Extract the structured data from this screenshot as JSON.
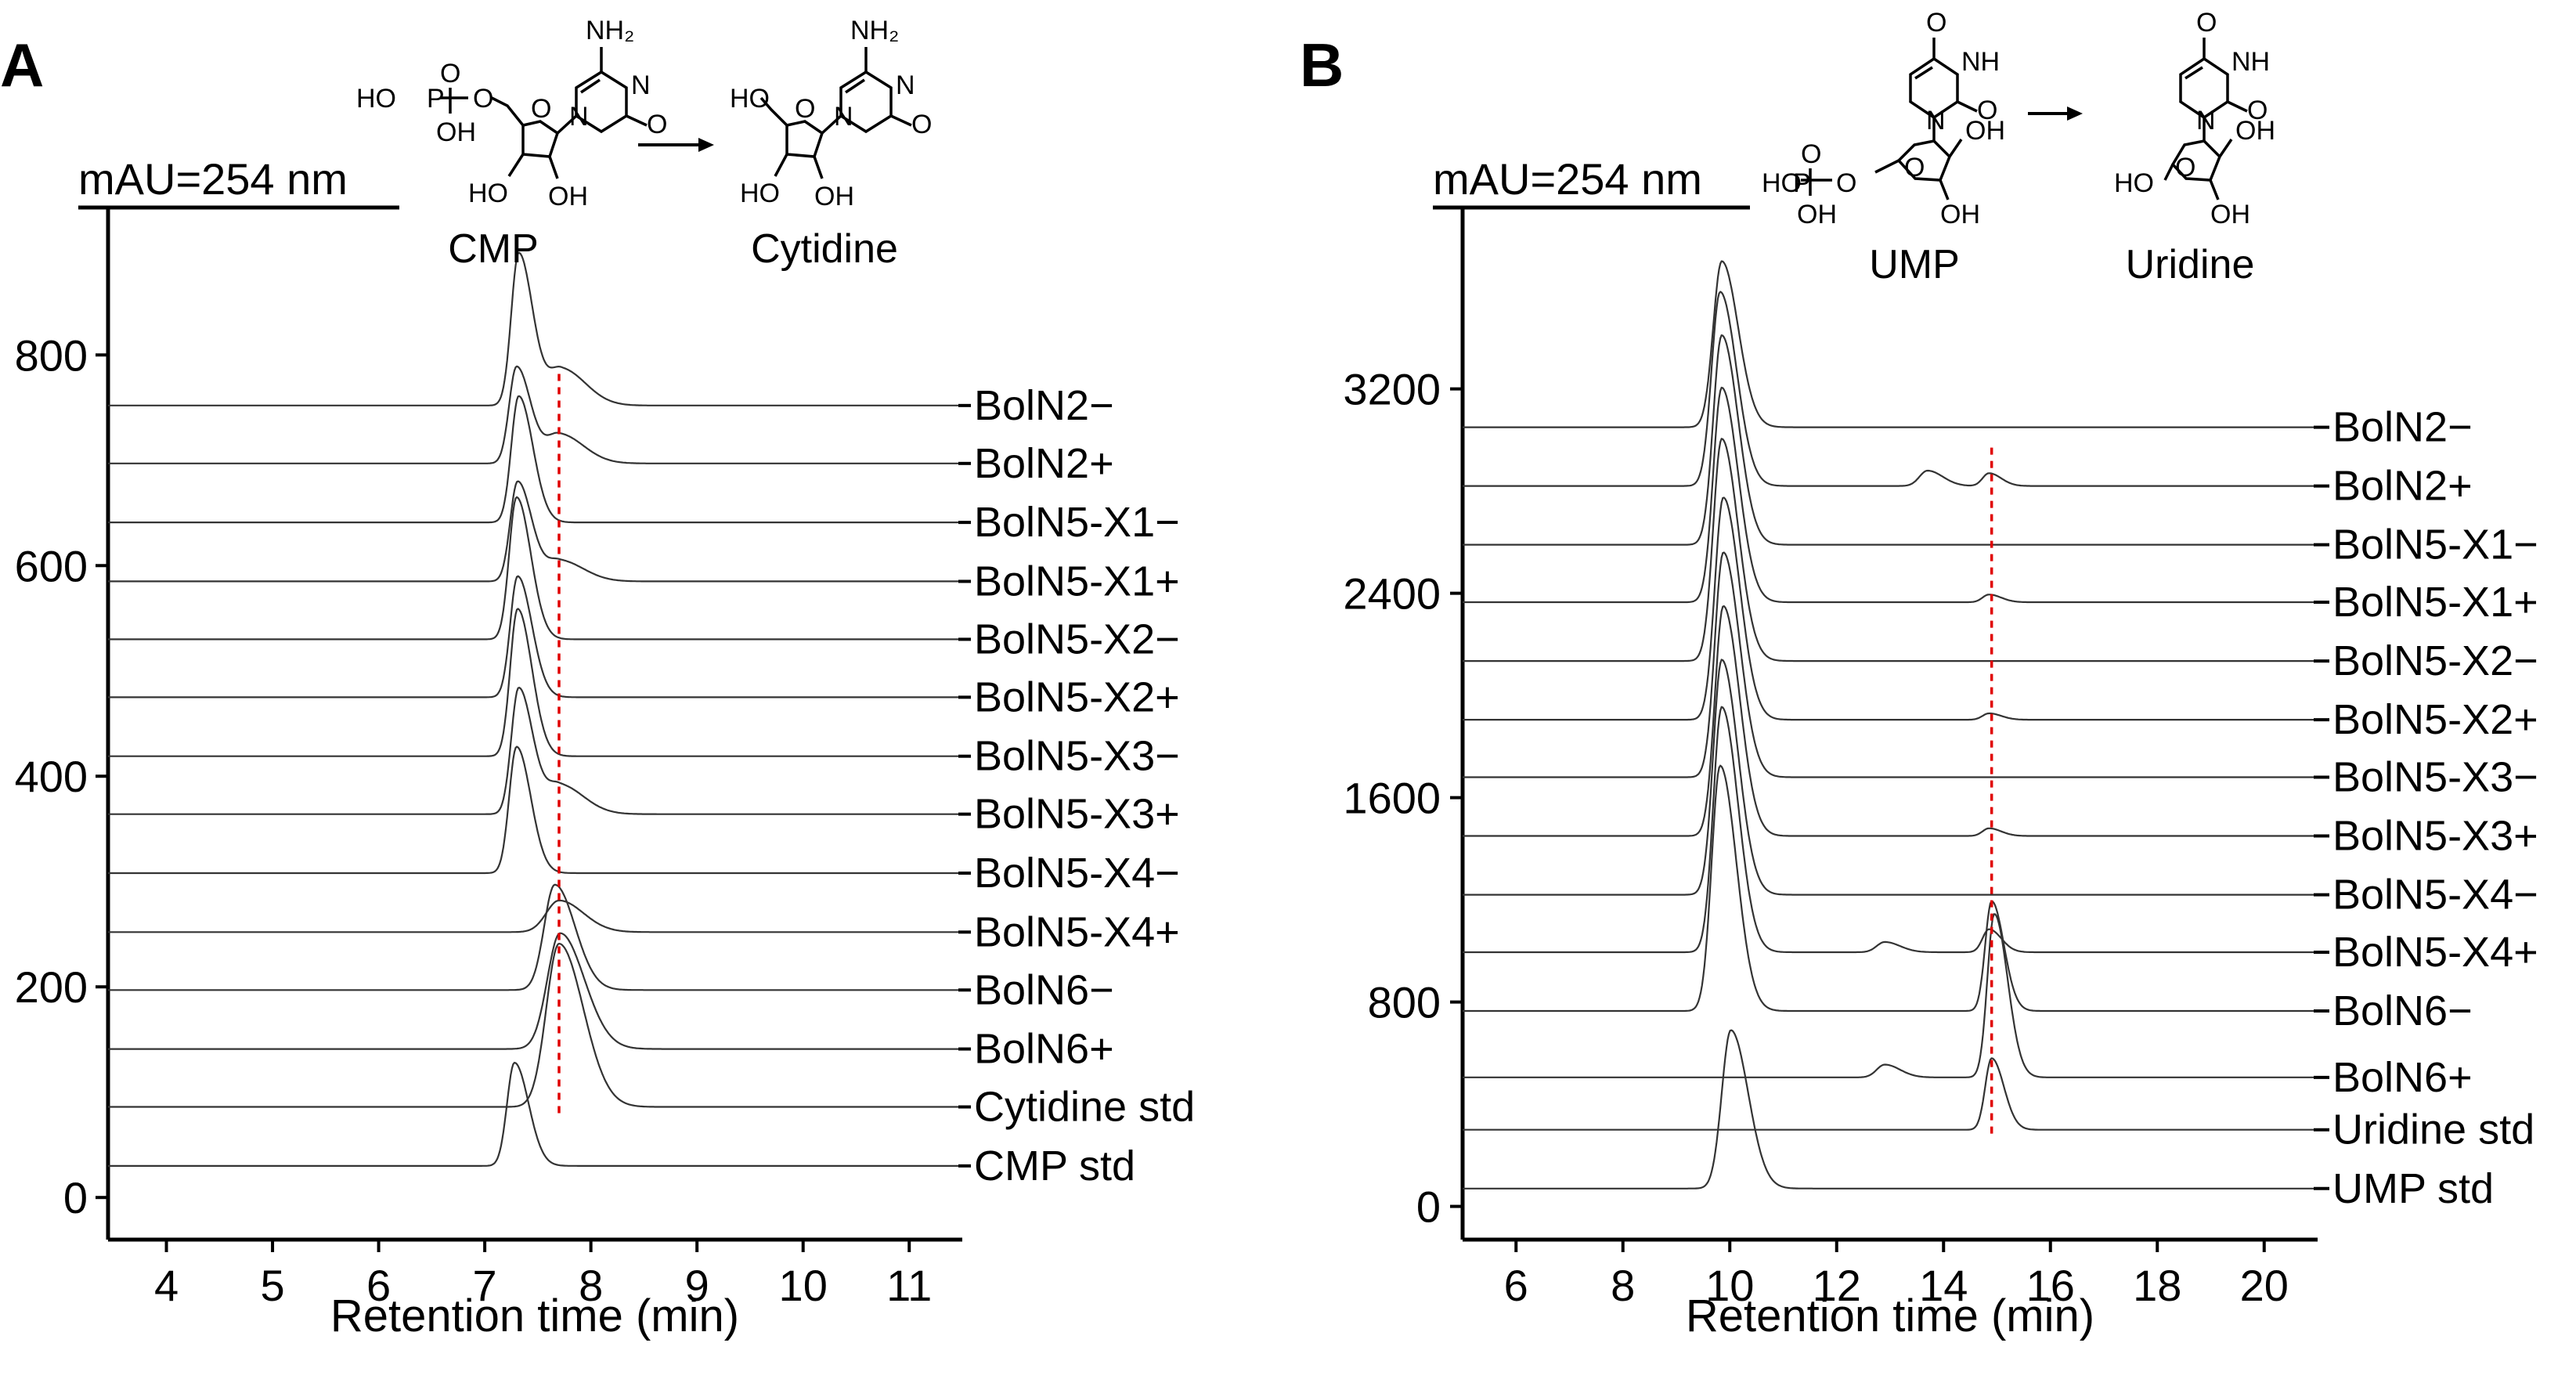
{
  "chart_data": [
    {
      "type": "line",
      "panel_label": "A",
      "ylabel": "mAU=254 nm",
      "xlabel": "Retention time (min)",
      "xlim": [
        3.45,
        11.5
      ],
      "ylim": [
        -40,
        940
      ],
      "xticks": [
        4,
        5,
        6,
        7,
        8,
        9,
        10,
        11
      ],
      "yticks": [
        0,
        200,
        400,
        600,
        800
      ],
      "marker_line_x": 7.7,
      "reaction": {
        "substrate": "CMP",
        "product": "Cytidine",
        "atoms": {
          "nh2": "NH₂",
          "ho": "HO",
          "oh": "OH",
          "o": "O",
          "n": "N",
          "p": "P"
        }
      },
      "series": [
        {
          "name": "BolN2−",
          "baseline": 752,
          "peaks": [
            [
              7.32,
              145,
              0.07
            ],
            [
              7.72,
              35,
              0.12
            ]
          ]
        },
        {
          "name": "BolN2+",
          "baseline": 697,
          "peaks": [
            [
              7.3,
              92,
              0.07
            ],
            [
              7.7,
              28,
              0.12
            ]
          ]
        },
        {
          "name": "BolN5-X1−",
          "baseline": 641,
          "peaks": [
            [
              7.32,
              120,
              0.07
            ]
          ]
        },
        {
          "name": "BolN5-X1+",
          "baseline": 585,
          "peaks": [
            [
              7.31,
              95,
              0.07
            ],
            [
              7.7,
              20,
              0.12
            ]
          ]
        },
        {
          "name": "BolN5-X2−",
          "baseline": 530,
          "peaks": [
            [
              7.3,
              135,
              0.07
            ]
          ]
        },
        {
          "name": "BolN5-X2+",
          "baseline": 475,
          "peaks": [
            [
              7.31,
              115,
              0.07
            ]
          ]
        },
        {
          "name": "BolN5-X3−",
          "baseline": 419,
          "peaks": [
            [
              7.31,
              140,
              0.07
            ]
          ]
        },
        {
          "name": "BolN5-X3+",
          "baseline": 364,
          "peaks": [
            [
              7.32,
              120,
              0.07
            ],
            [
              7.7,
              28,
              0.12
            ]
          ]
        },
        {
          "name": "BolN5-X4−",
          "baseline": 308,
          "peaks": [
            [
              7.3,
              120,
              0.07
            ]
          ]
        },
        {
          "name": "BolN5-X4+",
          "baseline": 252,
          "peaks": [
            [
              7.7,
              30,
              0.12
            ]
          ]
        },
        {
          "name": "BolN6−",
          "baseline": 197,
          "peaks": [
            [
              7.66,
              100,
              0.1
            ]
          ]
        },
        {
          "name": "BolN6+",
          "baseline": 141,
          "peaks": [
            [
              7.71,
              110,
              0.12
            ]
          ]
        },
        {
          "name": "Cytidine std",
          "baseline": 86,
          "peaks": [
            [
              7.7,
              155,
              0.12
            ]
          ]
        },
        {
          "name": "CMP std",
          "baseline": 30,
          "peaks": [
            [
              7.28,
              98,
              0.07
            ]
          ]
        }
      ]
    },
    {
      "type": "line",
      "panel_label": "B",
      "ylabel": "mAU=254 nm",
      "xlabel": "Retention time (min)",
      "xlim": [
        5.0,
        21.0
      ],
      "ylim": [
        -130,
        3910
      ],
      "xticks": [
        6,
        8,
        10,
        12,
        14,
        16,
        18,
        20
      ],
      "yticks": [
        0,
        800,
        1600,
        2400,
        3200
      ],
      "marker_line_x": 14.9,
      "reaction": {
        "substrate": "UMP",
        "product": "Uridine",
        "atoms": {
          "nh": "NH",
          "ho": "HO",
          "oh": "OH",
          "o": "O",
          "n": "N",
          "p": "P"
        }
      },
      "series": [
        {
          "name": "BolN2−",
          "baseline": 3050,
          "peaks": [
            [
              9.85,
              650,
              0.16
            ]
          ]
        },
        {
          "name": "BolN2+",
          "baseline": 2820,
          "peaks": [
            [
              9.82,
              760,
              0.16
            ],
            [
              13.7,
              60,
              0.15
            ],
            [
              14.85,
              50,
              0.12
            ]
          ]
        },
        {
          "name": "BolN5-X1−",
          "baseline": 2590,
          "peaks": [
            [
              9.85,
              820,
              0.16
            ]
          ]
        },
        {
          "name": "BolN5-X1+",
          "baseline": 2365,
          "peaks": [
            [
              9.85,
              840,
              0.16
            ],
            [
              14.85,
              30,
              0.12
            ]
          ]
        },
        {
          "name": "BolN5-X2−",
          "baseline": 2135,
          "peaks": [
            [
              9.85,
              870,
              0.16
            ]
          ]
        },
        {
          "name": "BolN5-X2+",
          "baseline": 1905,
          "peaks": [
            [
              9.88,
              870,
              0.16
            ],
            [
              14.85,
              25,
              0.12
            ]
          ]
        },
        {
          "name": "BolN5-X3−",
          "baseline": 1680,
          "peaks": [
            [
              9.88,
              880,
              0.16
            ]
          ]
        },
        {
          "name": "BolN5-X3+",
          "baseline": 1450,
          "peaks": [
            [
              9.88,
              900,
              0.16
            ],
            [
              14.85,
              30,
              0.12
            ]
          ]
        },
        {
          "name": "BolN5-X4−",
          "baseline": 1220,
          "peaks": [
            [
              9.85,
              920,
              0.16
            ]
          ]
        },
        {
          "name": "BolN5-X4+",
          "baseline": 995,
          "peaks": [
            [
              9.85,
              960,
              0.16
            ],
            [
              12.9,
              40,
              0.15
            ],
            [
              14.85,
              90,
              0.12
            ]
          ]
        },
        {
          "name": "BolN6−",
          "baseline": 765,
          "peaks": [
            [
              9.82,
              960,
              0.16
            ],
            [
              14.9,
              430,
              0.12
            ]
          ]
        },
        {
          "name": "BolN6+",
          "baseline": 505,
          "peaks": [
            [
              12.9,
              50,
              0.15
            ],
            [
              14.95,
              640,
              0.13
            ]
          ]
        },
        {
          "name": "Uridine std",
          "baseline": 300,
          "peaks": [
            [
              14.9,
              280,
              0.12
            ]
          ]
        },
        {
          "name": "UMP std",
          "baseline": 70,
          "peaks": [
            [
              10.02,
              620,
              0.17
            ]
          ]
        }
      ]
    }
  ]
}
